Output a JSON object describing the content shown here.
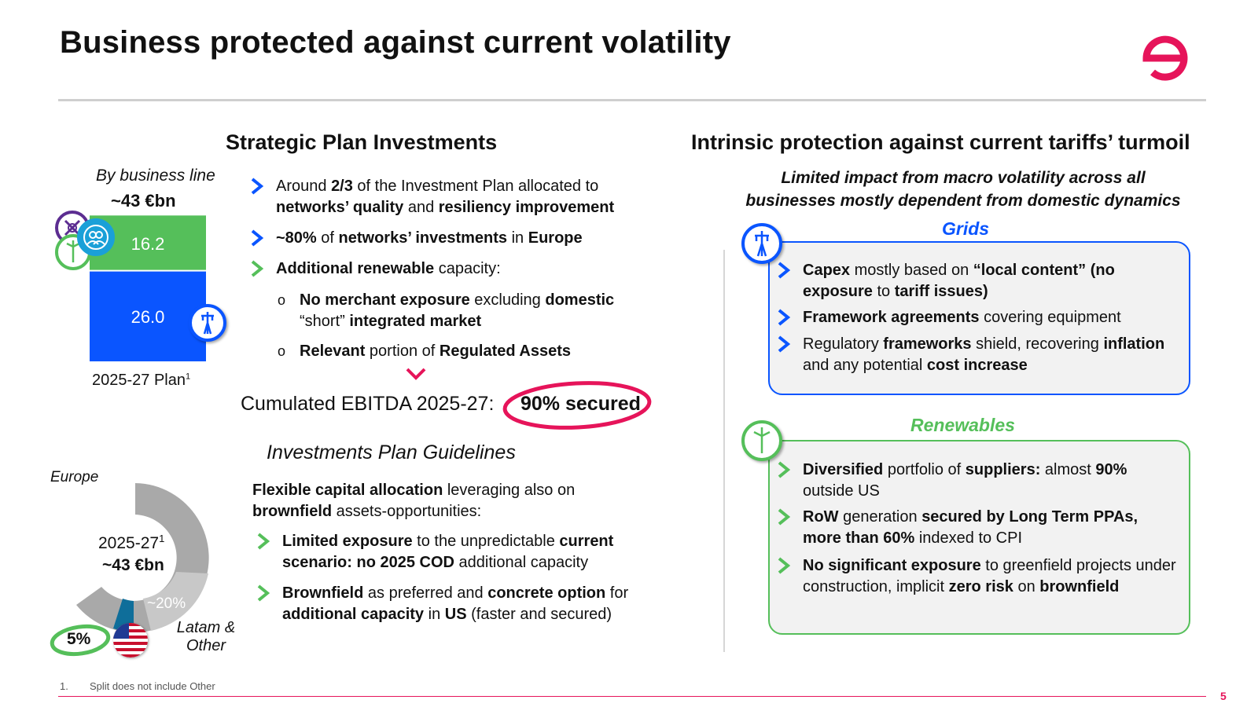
{
  "header": {
    "title": "Business protected against current volatility",
    "logo": "e",
    "logo_icon": "enel-logo-icon"
  },
  "colors": {
    "accent_pink": "#e6145a",
    "grids_blue": "#0a55ff",
    "renew_green": "#55bf5a",
    "grey_rule": "#cfcfcf"
  },
  "left": {
    "section_title": "Strategic Plan Investments",
    "by_line_label": "By business line",
    "total_label": "~43 €bn",
    "bar_top_value": "16.2",
    "bar_bottom_value": "26.0",
    "plan_label": "2025-27 Plan",
    "plan_sup": "1",
    "bullets": [
      {
        "p1": "Around ",
        "b1": "2/3",
        "p2": " of the Investment Plan allocated to ",
        "b2": "networks’ quality",
        "p3": " and ",
        "b3": "resiliency improvement"
      },
      {
        "b1": "~80%",
        "p1": " of ",
        "b2": "networks’ investments",
        "p2": " in ",
        "b3": "Europe"
      },
      {
        "b1": "Additional renewable",
        "p1": " capacity:"
      }
    ],
    "sub_bullets": [
      {
        "b1": "No merchant exposure",
        "p1": " excluding ",
        "b2": "domestic",
        "p2": "“short” ",
        "b3": "integrated market"
      },
      {
        "b1": "Relevant",
        "p1": " portion of ",
        "b2": "Regulated Assets"
      }
    ],
    "ebitda_label": "Cumulated EBITDA 2025-27:",
    "ebitda_value": "90% secured",
    "guidelines_title": "Investments Plan Guidelines",
    "guidelines_intro_b1": "Flexible capital allocation",
    "guidelines_intro_p1": " leveraging also on ",
    "guidelines_intro_b2": "brownfield",
    "guidelines_intro_p2": " assets-opportunities:",
    "guidelines": [
      {
        "b1": "Limited exposure",
        "p1": " to the unpredictable ",
        "b2": "current scenario: no 2025 COD",
        "p2": " additional capacity"
      },
      {
        "b1": "Brownfield",
        "p1": " as preferred and ",
        "b2": "concrete option",
        "p2": " for ",
        "b3": "additional capacity",
        "p3": " in ",
        "b4": "US",
        "p4": " (faster and secured)"
      }
    ],
    "donut": {
      "europe_label": "Europe",
      "europe_pct": "~75%",
      "center_line1": "2025-27",
      "center_sup": "1",
      "center_line2": "~43 €bn",
      "latam_pct": "~20%",
      "latam_label_1": "Latam &",
      "latam_label_2": "Other",
      "us_pct": "5%"
    }
  },
  "chart_data": {
    "type": "bar",
    "categories": [
      "2025-27 Plan"
    ],
    "series": [
      {
        "values": [
          26.0
        ]
      },
      {
        "values": [
          16.2
        ]
      }
    ],
    "total": "~43 €bn"
  },
  "right": {
    "section_title": "Intrinsic protection against current tariffs’ turmoil",
    "subtitle_1": "Limited impact from macro volatility across all",
    "subtitle_2": "businesses mostly dependent from domestic dynamics",
    "grids_title": "Grids",
    "grids": [
      {
        "b1": "Capex",
        "p1": " mostly based on ",
        "b2": "“local content” (no exposure",
        "p2": " to ",
        "b3": "tariff issues)"
      },
      {
        "b1": "Framework agreements",
        "p1": " covering equipment"
      },
      {
        "p0": "Regulatory ",
        "b1": "frameworks",
        "p1": " shield, recovering ",
        "b2": "inflation",
        "p2": " and any potential ",
        "b3": "cost increase"
      }
    ],
    "renew_title": "Renewables",
    "renew": [
      {
        "b1": "Diversified",
        "p1": " portfolio of ",
        "b2": "suppliers:",
        "p2": " almost ",
        "b3": "90%",
        "p3": " outside US"
      },
      {
        "b1": "RoW",
        "p1": " generation ",
        "b2": "secured by Long Term PPAs, more than 60%",
        "p2": " indexed to CPI"
      },
      {
        "b1": "No significant exposure",
        "p1": " to greenfield projects under construction, implicit ",
        "b2": "zero risk",
        "p2": " on ",
        "b3": "brownfield"
      }
    ]
  },
  "footer": {
    "footnote_num": "1.",
    "footnote_text": "Split does not include Other",
    "page": "5"
  }
}
